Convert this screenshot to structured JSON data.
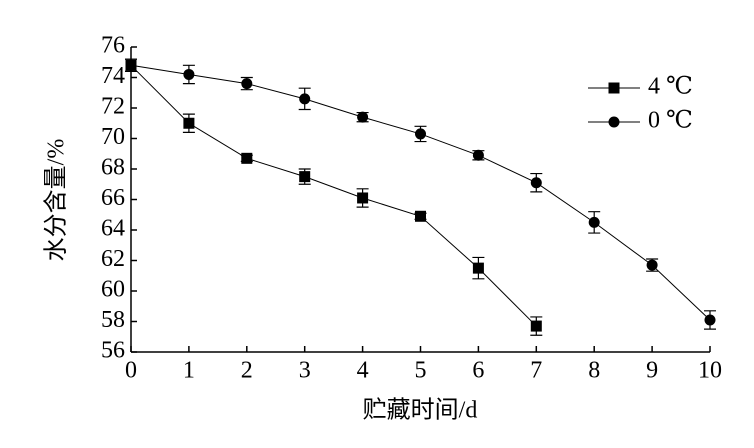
{
  "chart_data": {
    "type": "line",
    "x_label": "贮藏时间/d",
    "y_label": "水分含量/%",
    "xlim": [
      0,
      10
    ],
    "xticks": [
      0,
      1,
      2,
      3,
      4,
      5,
      6,
      7,
      8,
      9,
      10
    ],
    "ylim": [
      56,
      76
    ],
    "yticks": [
      56,
      58,
      60,
      62,
      64,
      66,
      68,
      70,
      72,
      74,
      76
    ],
    "legend": "upper right",
    "series": [
      {
        "name": "4 ℃",
        "color": "#000000",
        "marker": "square",
        "x": [
          0,
          1,
          2,
          3,
          4,
          5,
          6,
          7
        ],
        "values": [
          74.8,
          71.0,
          68.7,
          67.5,
          66.1,
          64.9,
          61.5,
          57.7
        ],
        "errors": [
          0.4,
          0.6,
          0.2,
          0.5,
          0.6,
          0.2,
          0.7,
          0.6
        ]
      },
      {
        "name": "0 ℃",
        "color": "#000000",
        "marker": "circle",
        "x": [
          0,
          1,
          2,
          3,
          4,
          5,
          6,
          7,
          8,
          9,
          10
        ],
        "values": [
          74.8,
          74.2,
          73.6,
          72.6,
          71.4,
          70.3,
          68.9,
          67.1,
          64.5,
          61.7,
          58.1
        ],
        "errors": [
          0.4,
          0.6,
          0.4,
          0.7,
          0.3,
          0.5,
          0.3,
          0.6,
          0.7,
          0.4,
          0.6
        ]
      }
    ]
  }
}
